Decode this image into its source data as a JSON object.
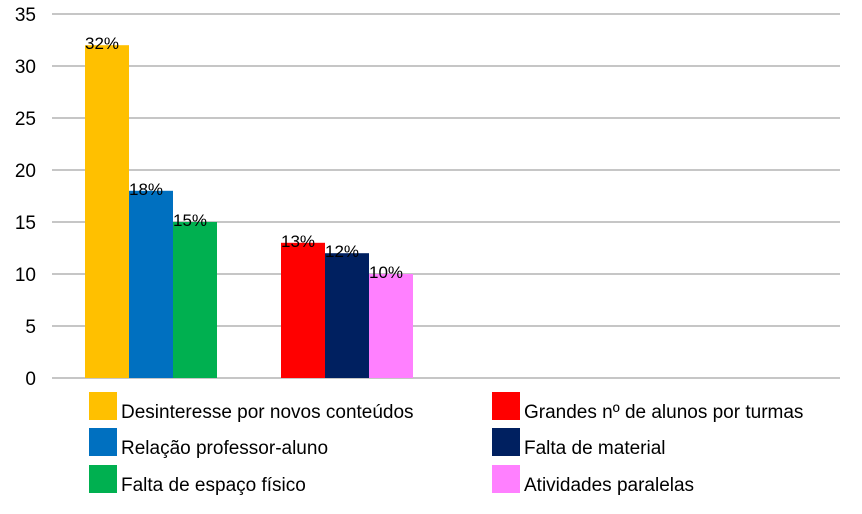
{
  "chart_data": {
    "type": "bar",
    "ylim": [
      0,
      35
    ],
    "yticks": [
      "0",
      "5",
      "10",
      "15",
      "20",
      "25",
      "30",
      "35"
    ],
    "grid": true,
    "legend_position": "bottom",
    "groups": [
      {
        "bars": [
          {
            "name": "Desinteresse por novos conteúdos",
            "value": 32,
            "label": "32%",
            "color": "#FFC000"
          },
          {
            "name": "Relação professor-aluno",
            "value": 18,
            "label": "18%",
            "color": "#0070C0"
          },
          {
            "name": "Falta de espaço físico",
            "value": 15,
            "label": "15%",
            "color": "#00B050"
          }
        ]
      },
      {
        "bars": [
          {
            "name": "Grandes nº de alunos por turmas",
            "value": 13,
            "label": "13%",
            "color": "#FF0000"
          },
          {
            "name": "Falta de material",
            "value": 12,
            "label": "12%",
            "color": "#002060"
          },
          {
            "name": "Atividades paralelas",
            "value": 10,
            "label": "10%",
            "color": "#FF80FF"
          }
        ]
      }
    ]
  }
}
